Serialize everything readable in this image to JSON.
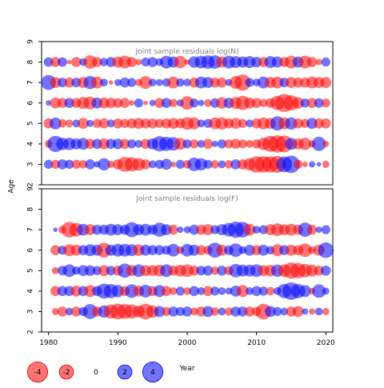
{
  "chart_data": [
    {
      "type": "scatter",
      "title": "Joint sample residuals log(N)",
      "xlabel": "Year",
      "ylabel": "Age",
      "xlim": [
        1979,
        2021
      ],
      "ylim": [
        2,
        9
      ],
      "x_ticks": [
        1980,
        1990,
        2000,
        2010,
        2020
      ],
      "y_ticks": [
        2,
        3,
        4,
        5,
        6,
        7,
        8,
        9
      ],
      "ages": [
        3,
        4,
        5,
        6,
        7,
        8
      ],
      "years": [
        1980,
        1981,
        1982,
        1983,
        1984,
        1985,
        1986,
        1987,
        1988,
        1989,
        1990,
        1991,
        1992,
        1993,
        1994,
        1995,
        1996,
        1997,
        1998,
        1999,
        2000,
        2001,
        2002,
        2003,
        2004,
        2005,
        2006,
        2007,
        2008,
        2009,
        2010,
        2011,
        2012,
        2013,
        2014,
        2015,
        2016,
        2017,
        2018,
        2019,
        2020
      ],
      "residuals": {
        "3": [
          0.8,
          -0.8,
          1.0,
          0.8,
          -0.8,
          -0.7,
          1.0,
          0.4,
          1.5,
          -0.5,
          -1.0,
          -2.2,
          -2.0,
          -1.6,
          -1.0,
          0.6,
          0.8,
          1.2,
          -0.3,
          0.8,
          -0.7,
          1.8,
          1.5,
          0.8,
          -0.7,
          0.6,
          -0.7,
          1.0,
          -1.0,
          -1.5,
          -2.6,
          -2.7,
          -2.6,
          -2.8,
          2.4,
          3.0,
          -0.8,
          -0.3,
          0.4,
          0.2,
          -0.5
        ],
        "4": [
          -0.6,
          2.6,
          1.5,
          1.5,
          1.2,
          1.4,
          -1.0,
          1.0,
          -1.2,
          1.0,
          1.1,
          -1.0,
          0.8,
          0.6,
          -1.0,
          1.2,
          2.3,
          2.0,
          1.8,
          -1.4,
          0.8,
          -0.8,
          0.6,
          -1.0,
          0.4,
          0.8,
          -0.8,
          -1.0,
          -0.8,
          -0.6,
          -0.8,
          -1.5,
          -2.5,
          -3.0,
          -2.8,
          1.4,
          -1.2,
          -1.5,
          -0.5,
          2.0,
          -0.4
        ],
        "5": [
          -1.0,
          1.4,
          -0.7,
          -0.6,
          0.6,
          -1.2,
          0.5,
          -0.8,
          -1.0,
          0.6,
          -1.0,
          -0.8,
          -1.0,
          -1.2,
          -1.0,
          -1.0,
          -0.8,
          -1.0,
          -1.2,
          -1.0,
          -1.6,
          -1.4,
          0.6,
          0.8,
          -1.4,
          -1.5,
          -1.0,
          -1.2,
          -0.8,
          0.6,
          -1.0,
          -1.4,
          -1.2,
          2.0,
          -1.4,
          1.5,
          -1.0,
          -0.8,
          1.2,
          -1.0,
          -1.0
        ],
        "6": [
          0.3,
          -1.2,
          -1.0,
          1.0,
          -1.0,
          -1.4,
          -1.6,
          1.2,
          -1.2,
          -1.1,
          -0.9,
          -1.0,
          -0.3,
          0.8,
          -0.2,
          0.4,
          -1.0,
          1.0,
          -0.7,
          0.5,
          -1.8,
          0.8,
          0.4,
          -0.6,
          0.9,
          -1.3,
          1.1,
          -1.4,
          -2.0,
          -1.2,
          -1.0,
          -0.7,
          -0.9,
          -2.0,
          -3.2,
          -2.3,
          -1.3,
          0.8,
          -1.0,
          0.9,
          -0.8
        ],
        "7": [
          2.2,
          -1.2,
          0.9,
          -1.0,
          0.9,
          -1.2,
          1.7,
          -1.4,
          0.6,
          -0.2,
          0.5,
          1.0,
          0.8,
          -0.5,
          -1.6,
          0.6,
          0.5,
          0.7,
          -1.4,
          0.7,
          0.6,
          -1.0,
          1.4,
          1.2,
          -1.0,
          -1.0,
          0.5,
          -1.6,
          -2.6,
          0.8,
          0.6,
          1.4,
          -1.2,
          -1.4,
          0.9,
          -1.2,
          -1.0,
          -1.0,
          -1.4,
          -1.2,
          -1.2
        ],
        "8": [
          0.9,
          -1.0,
          0.9,
          -0.2,
          -1.0,
          0.6,
          -1.8,
          -1.0,
          0.7,
          1.0,
          -1.2,
          -1.6,
          -1.0,
          -0.4,
          0.8,
          1.0,
          0.6,
          1.6,
          1.2,
          -1.5,
          -0.3,
          1.3,
          1.6,
          1.8,
          1.8,
          -1.2,
          1.6,
          1.4,
          1.2,
          1.4,
          1.1,
          -1.0,
          1.4,
          1.2,
          -1.0,
          -1.6,
          1.2,
          -1.6,
          -1.0,
          -0.4,
          0.8
        ]
      }
    },
    {
      "type": "scatter",
      "title": "Joint sample residuals log(F)",
      "xlabel": "Year",
      "ylabel": "Age",
      "xlim": [
        1979,
        2021
      ],
      "ylim": [
        2,
        9
      ],
      "x_ticks": [
        1980,
        1990,
        2000,
        2010,
        2020
      ],
      "y_ticks": [
        2,
        3,
        4,
        5,
        6,
        7,
        8,
        9
      ],
      "ages": [
        3,
        4,
        5,
        6,
        7
      ],
      "years": [
        1981,
        1982,
        1983,
        1984,
        1985,
        1986,
        1987,
        1988,
        1989,
        1990,
        1991,
        1992,
        1993,
        1994,
        1995,
        1996,
        1997,
        1998,
        1999,
        2000,
        2001,
        2002,
        2003,
        2004,
        2005,
        2006,
        2007,
        2008,
        2009,
        2010,
        2011,
        2012,
        2013,
        2014,
        2015,
        2016,
        2017,
        2018,
        2019,
        2020
      ],
      "residuals": {
        "3": [
          -0.5,
          -1.0,
          0.6,
          -1.0,
          0.8,
          2.2,
          -1.0,
          1.5,
          -2.0,
          -2.4,
          -2.2,
          -2.0,
          -1.4,
          -2.4,
          -1.5,
          1.2,
          -0.8,
          1.0,
          0.8,
          1.0,
          -0.6,
          -1.0,
          1.2,
          -0.7,
          0.6,
          -0.7,
          1.0,
          1.0,
          -1.0,
          -0.8,
          -2.4,
          1.2,
          0.8,
          0.6,
          -1.0,
          -1.2,
          0.4,
          -0.4,
          0.6,
          -0.5
        ],
        "4": [
          -1.0,
          1.0,
          1.0,
          -1.2,
          1.0,
          -1.4,
          1.0,
          2.2,
          2.0,
          1.5,
          -1.0,
          1.8,
          -1.2,
          1.6,
          -1.0,
          1.4,
          -1.0,
          -0.6,
          0.8,
          -0.6,
          1.0,
          0.6,
          -1.0,
          0.8,
          0.6,
          0.5,
          1.2,
          -1.4,
          0.6,
          1.0,
          0.8,
          -0.7,
          0.6,
          2.0,
          3.0,
          2.0,
          1.4,
          -0.4,
          1.8,
          0.5
        ],
        "5": [
          -0.5,
          0.9,
          1.6,
          0.7,
          1.2,
          1.1,
          0.8,
          -1.2,
          0.9,
          -1.0,
          2.0,
          -1.2,
          1.6,
          -1.2,
          -1.2,
          -1.4,
          1.6,
          -1.0,
          -1.4,
          -1.6,
          -1.0,
          0.9,
          1.0,
          -0.7,
          1.0,
          -0.8,
          1.8,
          1.4,
          1.4,
          1.6,
          -1.2,
          -1.3,
          1.5,
          -1.6,
          -2.6,
          -2.3,
          -1.8,
          -1.4,
          -1.0,
          1.0
        ],
        "6": [
          -1.0,
          0.8,
          -1.4,
          -1.2,
          1.0,
          1.4,
          1.2,
          -2.2,
          1.2,
          1.6,
          1.6,
          1.4,
          -1.3,
          1.2,
          1.0,
          1.0,
          0.8,
          1.6,
          -0.6,
          1.6,
          1.2,
          -1.0,
          -0.8,
          2.2,
          -1.2,
          0.9,
          1.8,
          0.6,
          1.2,
          -1.0,
          1.2,
          0.7,
          -1.4,
          1.0,
          -1.2,
          -1.0,
          -1.8,
          -0.6,
          -1.2,
          2.4
        ],
        "7": [
          0.2,
          -0.6,
          -2.4,
          -1.8,
          1.4,
          -1.2,
          1.0,
          1.0,
          1.4,
          1.2,
          1.0,
          2.2,
          1.2,
          1.4,
          1.0,
          2.0,
          1.2,
          -1.0,
          0.4,
          0.5,
          1.0,
          -1.0,
          -1.2,
          0.8,
          1.2,
          1.8,
          2.6,
          2.4,
          -1.4,
          0.6,
          0.8,
          -1.2,
          -1.6,
          -1.2,
          -1.4,
          -1.0,
          2.0,
          -1.0,
          0.4,
          0.8
        ]
      }
    }
  ],
  "legend": {
    "items": [
      {
        "label": "-4",
        "value": -4
      },
      {
        "label": "-2",
        "value": -2
      },
      {
        "label": "0",
        "value": 0
      },
      {
        "label": "2",
        "value": 2
      },
      {
        "label": "4",
        "value": 4
      }
    ],
    "title": "Year"
  },
  "colors": {
    "negative": "#ff0000",
    "positive": "#0000ff",
    "frame": "#000000"
  }
}
